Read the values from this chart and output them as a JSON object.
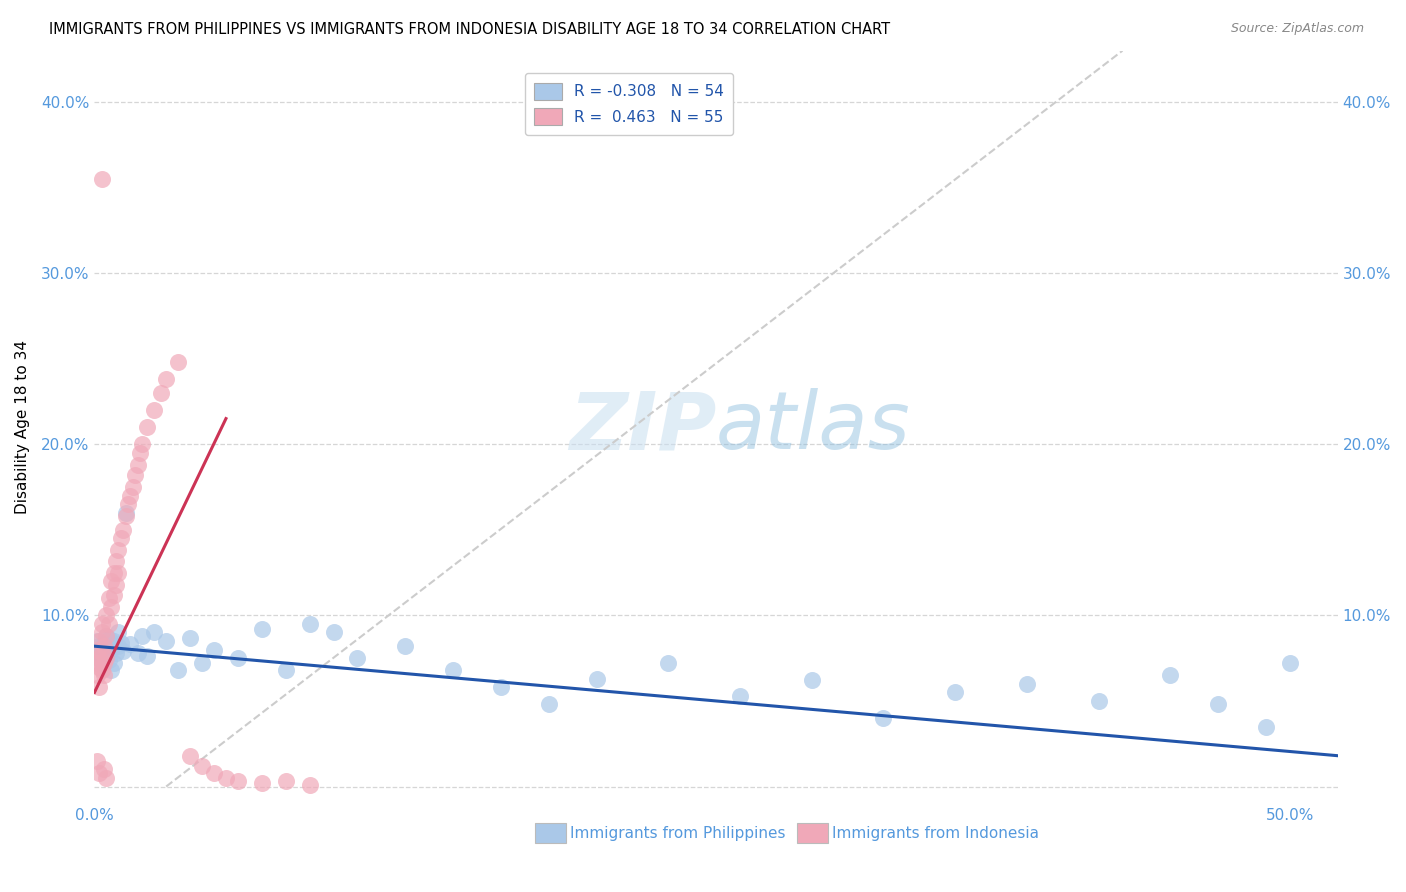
{
  "title": "IMMIGRANTS FROM PHILIPPINES VS IMMIGRANTS FROM INDONESIA DISABILITY AGE 18 TO 34 CORRELATION CHART",
  "source": "Source: ZipAtlas.com",
  "ylabel": "Disability Age 18 to 34",
  "xlim": [
    0.0,
    0.52
  ],
  "ylim": [
    -0.01,
    0.43
  ],
  "yticks": [
    0.0,
    0.1,
    0.2,
    0.3,
    0.4
  ],
  "ytick_labels": [
    "",
    "10.0%",
    "20.0%",
    "30.0%",
    "40.0%"
  ],
  "right_ytick_labels": [
    "",
    "10.0%",
    "20.0%",
    "30.0%",
    "40.0%"
  ],
  "watermark": "ZIPatlas",
  "r_philippines": -0.308,
  "n_philippines": 54,
  "r_indonesia": 0.463,
  "n_indonesia": 55,
  "philippines_color": "#aac8e8",
  "indonesia_color": "#f0a8b8",
  "philippines_line_color": "#2255aa",
  "indonesia_line_color": "#cc3355",
  "diag_line_color": "#cccccc",
  "phil_x": [
    0.001,
    0.002,
    0.002,
    0.003,
    0.003,
    0.003,
    0.004,
    0.004,
    0.005,
    0.005,
    0.006,
    0.006,
    0.007,
    0.007,
    0.008,
    0.008,
    0.009,
    0.01,
    0.01,
    0.011,
    0.012,
    0.013,
    0.015,
    0.018,
    0.02,
    0.022,
    0.025,
    0.03,
    0.035,
    0.04,
    0.045,
    0.05,
    0.06,
    0.07,
    0.08,
    0.09,
    0.1,
    0.11,
    0.13,
    0.15,
    0.17,
    0.19,
    0.21,
    0.24,
    0.27,
    0.3,
    0.33,
    0.36,
    0.39,
    0.42,
    0.45,
    0.47,
    0.49,
    0.5
  ],
  "phil_y": [
    0.085,
    0.082,
    0.078,
    0.08,
    0.075,
    0.072,
    0.083,
    0.076,
    0.088,
    0.079,
    0.086,
    0.074,
    0.08,
    0.068,
    0.085,
    0.072,
    0.078,
    0.09,
    0.082,
    0.084,
    0.079,
    0.16,
    0.083,
    0.078,
    0.088,
    0.076,
    0.09,
    0.085,
    0.068,
    0.087,
    0.072,
    0.08,
    0.075,
    0.092,
    0.068,
    0.095,
    0.09,
    0.075,
    0.082,
    0.068,
    0.058,
    0.048,
    0.063,
    0.072,
    0.053,
    0.062,
    0.04,
    0.055,
    0.06,
    0.05,
    0.065,
    0.048,
    0.035,
    0.072
  ],
  "indo_x": [
    0.001,
    0.001,
    0.001,
    0.002,
    0.002,
    0.002,
    0.002,
    0.003,
    0.003,
    0.003,
    0.003,
    0.004,
    0.004,
    0.004,
    0.005,
    0.005,
    0.005,
    0.006,
    0.006,
    0.007,
    0.007,
    0.008,
    0.008,
    0.009,
    0.009,
    0.01,
    0.01,
    0.011,
    0.012,
    0.013,
    0.014,
    0.015,
    0.016,
    0.017,
    0.018,
    0.019,
    0.02,
    0.022,
    0.025,
    0.028,
    0.03,
    0.035,
    0.04,
    0.045,
    0.05,
    0.055,
    0.06,
    0.07,
    0.08,
    0.09,
    0.003,
    0.002,
    0.001,
    0.004,
    0.005
  ],
  "indo_y": [
    0.065,
    0.072,
    0.08,
    0.058,
    0.075,
    0.085,
    0.07,
    0.068,
    0.09,
    0.078,
    0.095,
    0.072,
    0.082,
    0.065,
    0.088,
    0.1,
    0.075,
    0.095,
    0.11,
    0.105,
    0.12,
    0.112,
    0.125,
    0.118,
    0.132,
    0.125,
    0.138,
    0.145,
    0.15,
    0.158,
    0.165,
    0.17,
    0.175,
    0.182,
    0.188,
    0.195,
    0.2,
    0.21,
    0.22,
    0.23,
    0.238,
    0.248,
    0.018,
    0.012,
    0.008,
    0.005,
    0.003,
    0.002,
    0.003,
    0.001,
    0.355,
    0.008,
    0.015,
    0.01,
    0.005
  ]
}
